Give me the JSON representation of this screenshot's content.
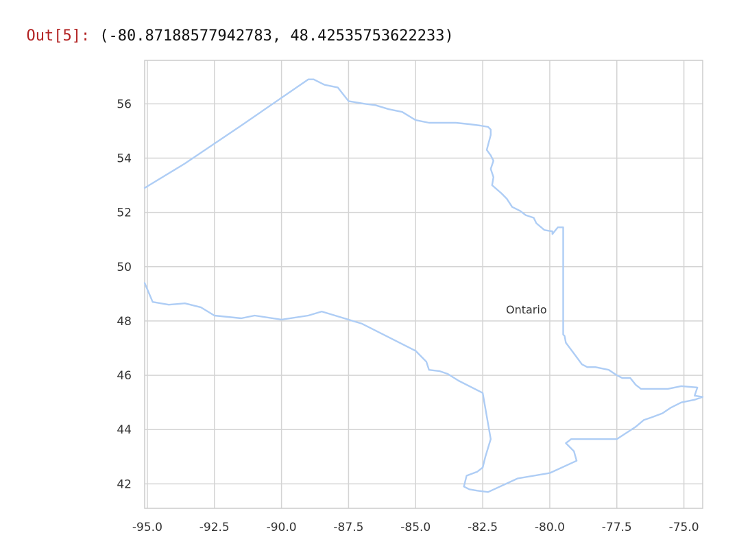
{
  "output": {
    "prompt": "Out[5]:",
    "value": "(-80.87188577942783, 48.42535753622233)"
  },
  "chart_data": {
    "type": "line",
    "title": "",
    "xlabel": "",
    "ylabel": "",
    "xlim": [
      -95.1,
      -74.3
    ],
    "ylim": [
      41.1,
      57.6
    ],
    "xticks": [
      -95.0,
      -92.5,
      -90.0,
      -87.5,
      -85.0,
      -82.5,
      -80.0,
      -77.5,
      -75.0
    ],
    "xtick_labels": [
      "-95.0",
      "-92.5",
      "-90.0",
      "-87.5",
      "-85.0",
      "-82.5",
      "-80.0",
      "-77.5",
      "-75.0"
    ],
    "yticks": [
      42,
      44,
      46,
      48,
      50,
      52,
      54,
      56
    ],
    "ytick_labels": [
      "42",
      "44",
      "46",
      "48",
      "50",
      "52",
      "54",
      "56"
    ],
    "grid": true,
    "series": [
      {
        "color": "#aecdf5",
        "x": [
          -95.1,
          -93.6,
          -91.5,
          -89.0,
          -88.8,
          -88.4,
          -87.9,
          -87.5,
          -86.9,
          -86.5,
          -86.0,
          -85.5,
          -85.0,
          -84.5,
          -84.0,
          -83.5,
          -83.0,
          -82.6,
          -82.3,
          -82.2,
          -82.2,
          -82.35,
          -82.2,
          -82.1,
          -82.2,
          -82.1,
          -82.15,
          -81.8,
          -81.6,
          -81.4,
          -81.1,
          -80.9,
          -80.6,
          -80.5,
          -80.2,
          -79.9,
          -79.9,
          -79.7,
          -79.5,
          -79.5,
          -79.5,
          -79.5,
          -79.5,
          -79.45,
          -79.4,
          -79.1,
          -78.8,
          -78.6,
          -78.3,
          -77.8,
          -77.5,
          -77.3,
          -77.0,
          -76.8,
          -76.6,
          -76.3,
          -76.0,
          -75.6,
          -75.1,
          -74.5,
          -74.6,
          -74.3,
          -74.6,
          -75.1,
          -75.5,
          -75.8,
          -76.2,
          -76.5,
          -76.8,
          -77.5,
          -78.2,
          -78.8,
          -79.2,
          -79.4,
          -79.1,
          -79.0,
          -80.0,
          -81.2,
          -82.3,
          -82.7,
          -83.0,
          -83.2,
          -83.1,
          -82.7,
          -82.5,
          -82.4,
          -82.2,
          -82.5,
          -83.4,
          -83.8,
          -84.1,
          -84.5,
          -84.6,
          -84.8,
          -85.0,
          -86.0,
          -87.0,
          -88.5,
          -89.0,
          -90.0,
          -91.0,
          -91.5,
          -92.0,
          -92.5,
          -93.0,
          -93.6,
          -94.2,
          -94.8,
          -95.1
        ],
        "y": [
          52.9,
          53.8,
          55.2,
          56.9,
          56.9,
          56.7,
          56.6,
          56.1,
          56.0,
          55.95,
          55.8,
          55.7,
          55.4,
          55.3,
          55.3,
          55.3,
          55.25,
          55.2,
          55.15,
          55.05,
          54.85,
          54.3,
          54.1,
          53.9,
          53.6,
          53.3,
          53.0,
          52.7,
          52.5,
          52.2,
          52.05,
          51.9,
          51.8,
          51.6,
          51.35,
          51.3,
          51.2,
          51.45,
          51.45,
          50.5,
          49.5,
          48.5,
          47.5,
          47.45,
          47.2,
          46.8,
          46.4,
          46.3,
          46.3,
          46.2,
          46.0,
          45.9,
          45.9,
          45.65,
          45.5,
          45.5,
          45.5,
          45.5,
          45.6,
          45.55,
          45.25,
          45.2,
          45.1,
          45.0,
          44.8,
          44.6,
          44.45,
          44.35,
          44.1,
          43.65,
          43.65,
          43.65,
          43.65,
          43.5,
          43.2,
          42.85,
          42.4,
          42.2,
          41.7,
          41.75,
          41.8,
          41.9,
          42.3,
          42.45,
          42.6,
          43.0,
          43.65,
          45.35,
          45.8,
          46.05,
          46.15,
          46.2,
          46.5,
          46.7,
          46.9,
          47.4,
          47.9,
          48.35,
          48.2,
          48.05,
          48.2,
          48.1,
          48.15,
          48.2,
          48.5,
          48.65,
          48.6,
          48.7,
          49.4
        ]
      }
    ],
    "annotations": [
      {
        "text": "Ontario",
        "x": -80.87188577942783,
        "y": 48.42535753622233
      }
    ]
  }
}
